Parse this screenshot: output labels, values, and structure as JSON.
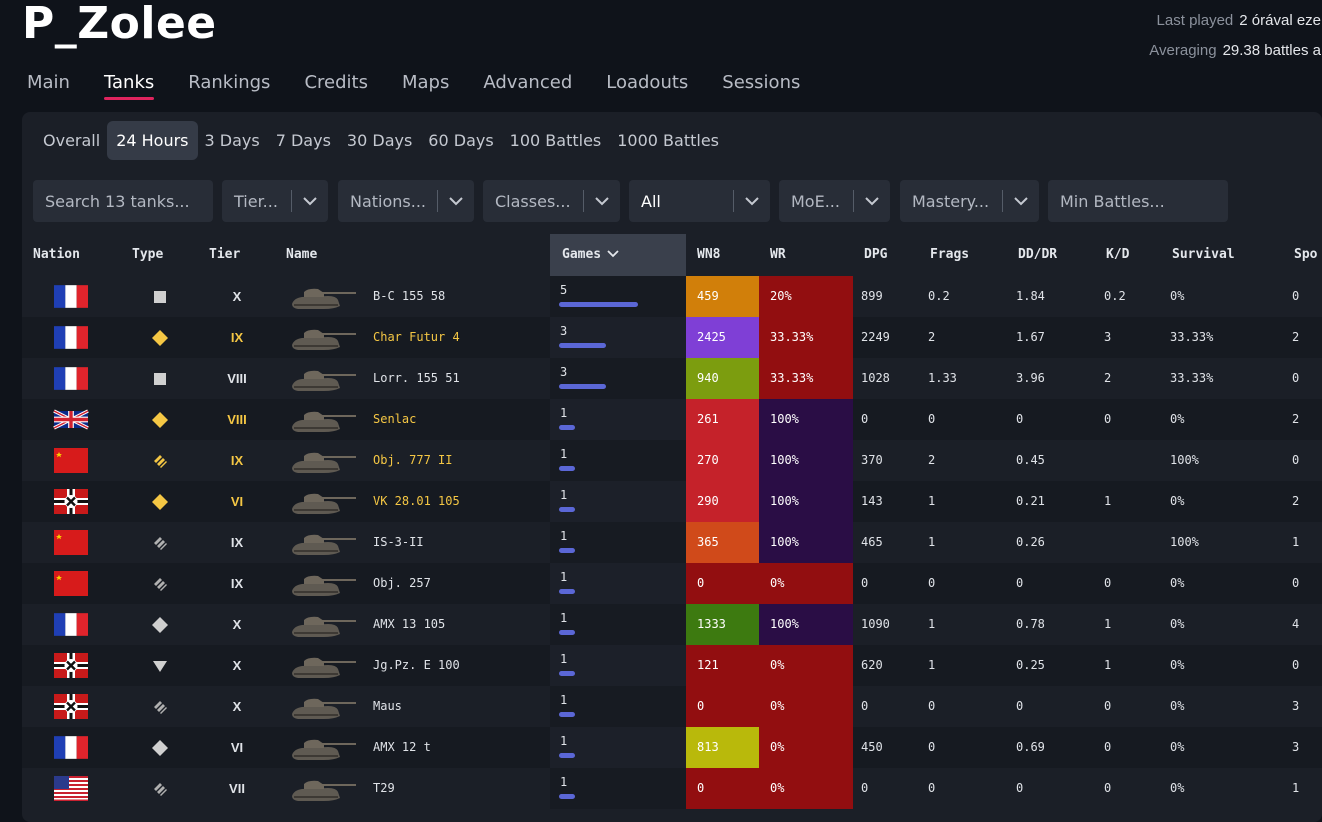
{
  "player": {
    "name": "P_Zolee"
  },
  "meta": {
    "last_played_label": "Last played",
    "last_played_value": "2 órával eze",
    "averaging_label": "Averaging",
    "averaging_value": "29.38 battles a"
  },
  "tabs": [
    "Main",
    "Tanks",
    "Rankings",
    "Credits",
    "Maps",
    "Advanced",
    "Loadouts",
    "Sessions"
  ],
  "active_tab": "Tanks",
  "periods": [
    "Overall",
    "24 Hours",
    "3 Days",
    "7 Days",
    "30 Days",
    "60 Days",
    "100 Battles",
    "1000 Battles"
  ],
  "active_period": "24 Hours",
  "filters": {
    "search_placeholder": "Search 13 tanks...",
    "tier": "Tier...",
    "nations": "Nations...",
    "classes": "Classes...",
    "premium": "All",
    "moe": "MoE...",
    "mastery": "Mastery...",
    "min_battles": "Min Battles..."
  },
  "columns": [
    "Nation",
    "Type",
    "Tier",
    "Name",
    "Games",
    "WN8",
    "WR",
    "DPG",
    "Frags",
    "DD/DR",
    "K/D",
    "Survival",
    "Spo"
  ],
  "sorted_column": "Games",
  "colors": {
    "accent": "#e0245e",
    "games_bar": "#5b67d6",
    "premium_text": "#f5c744"
  },
  "rows": [
    {
      "nation": "france",
      "type": "heavy",
      "type_color": "#d0d0d0",
      "tier": "X",
      "premium": false,
      "name": "B-C 155 58",
      "games": "5",
      "games_frac": 1.0,
      "wn8": "459",
      "wn8_color": "#d17f0a",
      "wr": "20%",
      "wr_color": "#920e10",
      "dpg": "899",
      "frags": "0.2",
      "dddr": "1.84",
      "kd": "0.2",
      "survival": "0%",
      "spo": "0"
    },
    {
      "nation": "france",
      "type": "medium",
      "type_color": "#f5c744",
      "tier": "IX",
      "premium": true,
      "name": "Char Futur 4",
      "games": "3",
      "games_frac": 0.6,
      "wn8": "2425",
      "wn8_color": "#7f3fd6",
      "wr": "33.33%",
      "wr_color": "#920e10",
      "dpg": "2249",
      "frags": "2",
      "dddr": "1.67",
      "kd": "3",
      "survival": "33.33%",
      "spo": "2"
    },
    {
      "nation": "france",
      "type": "heavy",
      "type_color": "#d0d0d0",
      "tier": "VIII",
      "premium": false,
      "name": "Lorr. 155 51",
      "games": "3",
      "games_frac": 0.6,
      "wn8": "940",
      "wn8_color": "#7c9d0f",
      "wr": "33.33%",
      "wr_color": "#920e10",
      "dpg": "1028",
      "frags": "1.33",
      "dddr": "3.96",
      "kd": "2",
      "survival": "33.33%",
      "spo": "0"
    },
    {
      "nation": "uk",
      "type": "medium",
      "type_color": "#f5c744",
      "tier": "VIII",
      "premium": true,
      "name": "Senlac",
      "games": "1",
      "games_frac": 0.2,
      "wn8": "261",
      "wn8_color": "#c5222a",
      "wr": "100%",
      "wr_color": "#2a0d45",
      "dpg": "0",
      "frags": "0",
      "dddr": "0",
      "kd": "0",
      "survival": "0%",
      "spo": "2"
    },
    {
      "nation": "ussr",
      "type": "td",
      "type_color": "#f5c744",
      "tier": "IX",
      "premium": true,
      "name": "Obj. 777 II",
      "games": "1",
      "games_frac": 0.2,
      "wn8": "270",
      "wn8_color": "#c5222a",
      "wr": "100%",
      "wr_color": "#2a0d45",
      "dpg": "370",
      "frags": "2",
      "dddr": "0.45",
      "kd": "",
      "survival": "100%",
      "spo": "0"
    },
    {
      "nation": "germany",
      "type": "medium",
      "type_color": "#f5c744",
      "tier": "VI",
      "premium": true,
      "name": "VK 28.01 105",
      "games": "1",
      "games_frac": 0.2,
      "wn8": "290",
      "wn8_color": "#c5222a",
      "wr": "100%",
      "wr_color": "#2a0d45",
      "dpg": "143",
      "frags": "1",
      "dddr": "0.21",
      "kd": "1",
      "survival": "0%",
      "spo": "2"
    },
    {
      "nation": "ussr",
      "type": "td",
      "type_color": "#b0b0b0",
      "tier": "IX",
      "premium": false,
      "name": "IS-3-II",
      "games": "1",
      "games_frac": 0.2,
      "wn8": "365",
      "wn8_color": "#d04a1a",
      "wr": "100%",
      "wr_color": "#2a0d45",
      "dpg": "465",
      "frags": "1",
      "dddr": "0.26",
      "kd": "",
      "survival": "100%",
      "spo": "1"
    },
    {
      "nation": "ussr",
      "type": "td",
      "type_color": "#b0b0b0",
      "tier": "IX",
      "premium": false,
      "name": "Obj. 257",
      "games": "1",
      "games_frac": 0.2,
      "wn8": "0",
      "wn8_color": "#920e10",
      "wr": "0%",
      "wr_color": "#920e10",
      "dpg": "0",
      "frags": "0",
      "dddr": "0",
      "kd": "0",
      "survival": "0%",
      "spo": "0"
    },
    {
      "nation": "france",
      "type": "medium",
      "type_color": "#d0d0d0",
      "tier": "X",
      "premium": false,
      "name": "AMX 13 105",
      "games": "1",
      "games_frac": 0.2,
      "wn8": "1333",
      "wn8_color": "#3d7a10",
      "wr": "100%",
      "wr_color": "#2a0d45",
      "dpg": "1090",
      "frags": "1",
      "dddr": "0.78",
      "kd": "1",
      "survival": "0%",
      "spo": "4"
    },
    {
      "nation": "germany",
      "type": "spg",
      "type_color": "#d0d0d0",
      "tier": "X",
      "premium": false,
      "name": "Jg.Pz. E 100",
      "games": "1",
      "games_frac": 0.2,
      "wn8": "121",
      "wn8_color": "#920e10",
      "wr": "0%",
      "wr_color": "#920e10",
      "dpg": "620",
      "frags": "1",
      "dddr": "0.25",
      "kd": "1",
      "survival": "0%",
      "spo": "0"
    },
    {
      "nation": "germany",
      "type": "td",
      "type_color": "#b0b0b0",
      "tier": "X",
      "premium": false,
      "name": "Maus",
      "games": "1",
      "games_frac": 0.2,
      "wn8": "0",
      "wn8_color": "#920e10",
      "wr": "0%",
      "wr_color": "#920e10",
      "dpg": "0",
      "frags": "0",
      "dddr": "0",
      "kd": "0",
      "survival": "0%",
      "spo": "3"
    },
    {
      "nation": "france",
      "type": "medium",
      "type_color": "#d0d0d0",
      "tier": "VI",
      "premium": false,
      "name": "AMX 12 t",
      "games": "1",
      "games_frac": 0.2,
      "wn8": "813",
      "wn8_color": "#b9b90b",
      "wr": "0%",
      "wr_color": "#920e10",
      "dpg": "450",
      "frags": "0",
      "dddr": "0.69",
      "kd": "0",
      "survival": "0%",
      "spo": "3"
    },
    {
      "nation": "usa",
      "type": "td",
      "type_color": "#b0b0b0",
      "tier": "VII",
      "premium": false,
      "name": "T29",
      "games": "1",
      "games_frac": 0.2,
      "wn8": "0",
      "wn8_color": "#920e10",
      "wr": "0%",
      "wr_color": "#920e10",
      "dpg": "0",
      "frags": "0",
      "dddr": "0",
      "kd": "0",
      "survival": "0%",
      "spo": "1"
    }
  ]
}
